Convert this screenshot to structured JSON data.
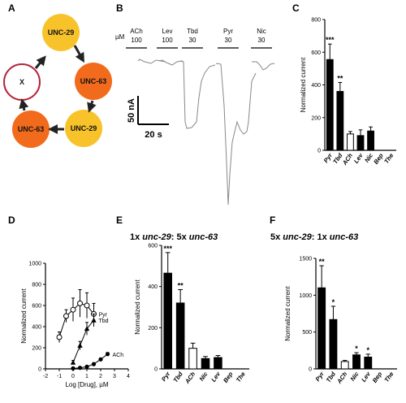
{
  "panel_labels": {
    "a": "A",
    "b": "B",
    "c": "C",
    "d": "D",
    "e": "E",
    "f": "F"
  },
  "panel_a": {
    "nodes": [
      "UNC-29",
      "UNC-63",
      "UNC-29",
      "UNC-63",
      "X"
    ],
    "colors": {
      "unc29": "#f8c32a",
      "unc63": "#f26b1d",
      "x_ring": "#b5243a"
    }
  },
  "panel_b": {
    "unit": "µM",
    "drugs": [
      {
        "name": "ACh",
        "conc": "100"
      },
      {
        "name": "Lev",
        "conc": "100"
      },
      {
        "name": "Tbd",
        "conc": "30"
      },
      {
        "name": "Pyr",
        "conc": "30"
      },
      {
        "name": "Nic",
        "conc": "30"
      }
    ],
    "scale_current": "50 nA",
    "scale_time": "20 s"
  },
  "chart_data": [
    {
      "panel": "C",
      "type": "bar",
      "ylabel": "Normalized current",
      "ylim": [
        0,
        800
      ],
      "yticks": [
        "0",
        "200",
        "400",
        "600",
        "800"
      ],
      "categories": [
        "Pyr",
        "Tbd",
        "ACh",
        "Lev",
        "Nic",
        "Bep",
        "The"
      ],
      "values": [
        555,
        360,
        100,
        90,
        118,
        0,
        0
      ],
      "errors": [
        95,
        55,
        15,
        35,
        25,
        0,
        0
      ],
      "colors": [
        "#000000",
        "#000000",
        "#ffffff",
        "#000000",
        "#000000",
        "#000000",
        "#000000"
      ],
      "significance": [
        "***",
        "**",
        "",
        "",
        "",
        "",
        ""
      ]
    },
    {
      "panel": "D",
      "type": "scatter",
      "xlabel": "Log [Drug], µM",
      "ylabel": "Normalized current",
      "xlim": [
        -2,
        4
      ],
      "ylim": [
        0,
        1000
      ],
      "xticks": [
        "-2",
        "-1",
        "0",
        "1",
        "2",
        "3",
        "4"
      ],
      "yticks": [
        "0",
        "200",
        "400",
        "600",
        "800",
        "1000"
      ],
      "series": [
        {
          "name": "Pyr",
          "marker": "circle-open",
          "x": [
            -1,
            -0.5,
            0,
            0.5,
            1,
            1.5
          ],
          "y": [
            300,
            500,
            560,
            620,
            600,
            520
          ],
          "err": [
            50,
            60,
            110,
            130,
            120,
            100
          ]
        },
        {
          "name": "Tbd",
          "marker": "triangle",
          "x": [
            0,
            0.5,
            1,
            1.5
          ],
          "y": [
            60,
            220,
            380,
            460
          ],
          "err": [
            20,
            40,
            60,
            60
          ]
        },
        {
          "name": "ACh",
          "marker": "circle",
          "x": [
            0,
            0.5,
            1,
            1.5,
            2,
            2.5
          ],
          "y": [
            5,
            10,
            20,
            45,
            90,
            140
          ],
          "err": [
            3,
            4,
            5,
            8,
            12,
            15
          ]
        }
      ]
    },
    {
      "panel": "E",
      "type": "bar",
      "title_parts": [
        "1x ",
        "unc-29",
        ": 5x ",
        "unc-63"
      ],
      "ylabel": "Normalized current",
      "ylim": [
        0,
        600
      ],
      "yticks": [
        "0",
        "200",
        "400",
        "600"
      ],
      "categories": [
        "Pyr",
        "Tbd",
        "ACh",
        "Nic",
        "Lev",
        "Bep",
        "The"
      ],
      "values": [
        465,
        320,
        100,
        50,
        55,
        0,
        0
      ],
      "errors": [
        100,
        65,
        25,
        10,
        10,
        0,
        0
      ],
      "colors": [
        "#000000",
        "#000000",
        "#ffffff",
        "#000000",
        "#000000",
        "#000000",
        "#000000"
      ],
      "significance": [
        "***",
        "**",
        "",
        "",
        "",
        "",
        ""
      ]
    },
    {
      "panel": "F",
      "type": "bar",
      "title_parts": [
        "5x ",
        "unc-29",
        ": 1x ",
        "unc-63"
      ],
      "ylabel": "Normalized current",
      "ylim": [
        0,
        1500
      ],
      "yticks": [
        "0",
        "500",
        "1000",
        "1500"
      ],
      "categories": [
        "Pyr",
        "Tbd",
        "ACh",
        "Nic",
        "Lev",
        "Bep",
        "The"
      ],
      "values": [
        1100,
        670,
        100,
        190,
        160,
        0,
        0
      ],
      "errors": [
        300,
        180,
        15,
        30,
        40,
        0,
        0
      ],
      "colors": [
        "#000000",
        "#000000",
        "#ffffff",
        "#000000",
        "#000000",
        "#000000",
        "#000000"
      ],
      "significance": [
        "**",
        "*",
        "",
        "*",
        "*",
        "",
        ""
      ]
    }
  ]
}
